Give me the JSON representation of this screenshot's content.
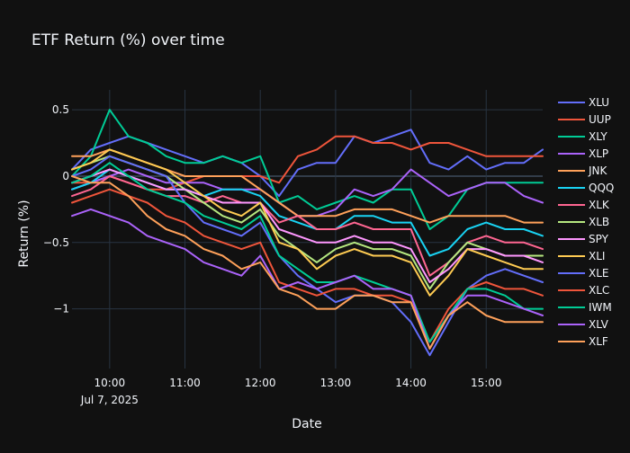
{
  "chart_data": {
    "type": "line",
    "title": "ETF Return (%) over time",
    "xlabel": "Date",
    "ylabel": "Return (%)",
    "grid": true,
    "legend_position": "right",
    "xlim": [
      "09:30",
      "15:45"
    ],
    "ylim": [
      -1.45,
      0.65
    ],
    "x_ticks": [
      {
        "t": "10:00",
        "label": "10:00",
        "sublabel": "Jul 7, 2025"
      },
      {
        "t": "11:00",
        "label": "11:00"
      },
      {
        "t": "12:00",
        "label": "12:00"
      },
      {
        "t": "13:00",
        "label": "13:00"
      },
      {
        "t": "14:00",
        "label": "14:00"
      },
      {
        "t": "15:00",
        "label": "15:00"
      }
    ],
    "y_ticks": [
      {
        "value": 0.5,
        "label": "0.5"
      },
      {
        "value": 0,
        "label": "0"
      },
      {
        "value": -0.5,
        "label": "−0.5"
      },
      {
        "value": -1,
        "label": "−1"
      }
    ],
    "x": [
      "09:30",
      "09:45",
      "10:00",
      "10:15",
      "10:30",
      "10:45",
      "11:00",
      "11:15",
      "11:30",
      "11:45",
      "12:00",
      "12:15",
      "12:30",
      "12:45",
      "13:00",
      "13:15",
      "13:30",
      "13:45",
      "14:00",
      "14:15",
      "14:30",
      "14:45",
      "15:00",
      "15:15",
      "15:30",
      "15:45"
    ],
    "series": [
      {
        "name": "XLU",
        "color": "#636efa",
        "values": [
          0.05,
          0.2,
          0.25,
          0.3,
          0.25,
          0.2,
          0.15,
          0.1,
          0.15,
          0.1,
          0.0,
          -0.15,
          0.05,
          0.1,
          0.1,
          0.3,
          0.25,
          0.3,
          0.35,
          0.1,
          0.05,
          0.15,
          0.05,
          0.1,
          0.1,
          0.2
        ]
      },
      {
        "name": "UUP",
        "color": "#ef553b",
        "values": [
          -0.05,
          -0.05,
          0.0,
          -0.05,
          -0.1,
          -0.1,
          -0.05,
          0.0,
          0.0,
          0.0,
          0.0,
          -0.05,
          0.15,
          0.2,
          0.3,
          0.3,
          0.25,
          0.25,
          0.2,
          0.25,
          0.25,
          0.2,
          0.15,
          0.15,
          0.15,
          0.15
        ]
      },
      {
        "name": "XLY",
        "color": "#00cc96",
        "values": [
          0.0,
          0.15,
          0.5,
          0.3,
          0.25,
          0.15,
          0.1,
          0.1,
          0.15,
          0.1,
          0.15,
          -0.2,
          -0.15,
          -0.25,
          -0.2,
          -0.15,
          -0.2,
          -0.1,
          -0.1,
          -0.4,
          -0.3,
          -0.1,
          -0.05,
          -0.05,
          -0.05,
          -0.05
        ]
      },
      {
        "name": "XLP",
        "color": "#ab63fa",
        "values": [
          -0.1,
          -0.05,
          0.0,
          0.05,
          0.0,
          -0.05,
          -0.05,
          -0.05,
          -0.1,
          -0.1,
          -0.1,
          -0.2,
          -0.3,
          -0.3,
          -0.25,
          -0.1,
          -0.15,
          -0.1,
          0.05,
          -0.05,
          -0.15,
          -0.1,
          -0.05,
          -0.05,
          -0.15,
          -0.2
        ]
      },
      {
        "name": "JNK",
        "color": "#ffa15a",
        "values": [
          0.15,
          0.15,
          0.2,
          0.15,
          0.1,
          0.05,
          0.0,
          0.0,
          0.0,
          0.0,
          -0.1,
          -0.2,
          -0.3,
          -0.3,
          -0.3,
          -0.25,
          -0.25,
          -0.25,
          -0.3,
          -0.35,
          -0.3,
          -0.3,
          -0.3,
          -0.3,
          -0.35,
          -0.35
        ]
      },
      {
        "name": "QQQ",
        "color": "#19d3f3",
        "values": [
          -0.1,
          -0.05,
          0.05,
          0.0,
          -0.05,
          -0.1,
          -0.1,
          -0.15,
          -0.1,
          -0.1,
          -0.15,
          -0.3,
          -0.35,
          -0.4,
          -0.4,
          -0.3,
          -0.3,
          -0.35,
          -0.35,
          -0.6,
          -0.55,
          -0.4,
          -0.35,
          -0.4,
          -0.4,
          -0.45
        ]
      },
      {
        "name": "XLK",
        "color": "#ff6692",
        "values": [
          -0.15,
          -0.1,
          0.0,
          -0.05,
          -0.1,
          -0.15,
          -0.15,
          -0.2,
          -0.15,
          -0.2,
          -0.2,
          -0.35,
          -0.3,
          -0.4,
          -0.4,
          -0.35,
          -0.4,
          -0.4,
          -0.4,
          -0.75,
          -0.65,
          -0.5,
          -0.45,
          -0.5,
          -0.5,
          -0.55
        ]
      },
      {
        "name": "XLB",
        "color": "#b6e880",
        "values": [
          0.05,
          0.1,
          0.15,
          0.1,
          0.05,
          0.0,
          -0.1,
          -0.2,
          -0.3,
          -0.35,
          -0.25,
          -0.45,
          -0.55,
          -0.65,
          -0.55,
          -0.5,
          -0.55,
          -0.55,
          -0.6,
          -0.85,
          -0.65,
          -0.5,
          -0.55,
          -0.6,
          -0.6,
          -0.6
        ]
      },
      {
        "name": "SPY",
        "color": "#ff97ff",
        "values": [
          -0.05,
          0.0,
          0.05,
          0.0,
          -0.05,
          -0.1,
          -0.1,
          -0.15,
          -0.2,
          -0.2,
          -0.2,
          -0.4,
          -0.45,
          -0.5,
          -0.5,
          -0.45,
          -0.5,
          -0.5,
          -0.55,
          -0.8,
          -0.7,
          -0.55,
          -0.55,
          -0.6,
          -0.6,
          -0.65
        ]
      },
      {
        "name": "XLI",
        "color": "#fecb52",
        "values": [
          0.05,
          0.1,
          0.2,
          0.15,
          0.1,
          0.05,
          -0.05,
          -0.15,
          -0.25,
          -0.3,
          -0.2,
          -0.5,
          -0.55,
          -0.7,
          -0.6,
          -0.55,
          -0.6,
          -0.6,
          -0.65,
          -0.9,
          -0.75,
          -0.55,
          -0.6,
          -0.65,
          -0.7,
          -0.7
        ]
      },
      {
        "name": "XLE",
        "color": "#636efa",
        "values": [
          0.0,
          0.05,
          0.15,
          0.1,
          0.05,
          0.0,
          -0.2,
          -0.35,
          -0.4,
          -0.45,
          -0.35,
          -0.6,
          -0.75,
          -0.85,
          -0.95,
          -0.9,
          -0.9,
          -0.95,
          -1.1,
          -1.35,
          -1.1,
          -0.85,
          -0.75,
          -0.7,
          -0.75,
          -0.8
        ]
      },
      {
        "name": "XLC",
        "color": "#ef553b",
        "values": [
          -0.2,
          -0.15,
          -0.1,
          -0.15,
          -0.2,
          -0.3,
          -0.35,
          -0.45,
          -0.5,
          -0.55,
          -0.5,
          -0.8,
          -0.85,
          -0.9,
          -0.85,
          -0.85,
          -0.9,
          -0.9,
          -0.95,
          -1.25,
          -1.0,
          -0.85,
          -0.8,
          -0.85,
          -0.85,
          -0.9
        ]
      },
      {
        "name": "IWM",
        "color": "#00cc96",
        "values": [
          -0.05,
          0.0,
          0.1,
          0.0,
          -0.1,
          -0.15,
          -0.2,
          -0.3,
          -0.35,
          -0.4,
          -0.3,
          -0.6,
          -0.7,
          -0.8,
          -0.8,
          -0.75,
          -0.8,
          -0.85,
          -0.9,
          -1.25,
          -1.05,
          -0.85,
          -0.85,
          -0.9,
          -1.0,
          -1.0
        ]
      },
      {
        "name": "XLV",
        "color": "#ab63fa",
        "values": [
          -0.3,
          -0.25,
          -0.3,
          -0.35,
          -0.45,
          -0.5,
          -0.55,
          -0.65,
          -0.7,
          -0.75,
          -0.6,
          -0.85,
          -0.8,
          -0.85,
          -0.8,
          -0.75,
          -0.85,
          -0.85,
          -0.9,
          -1.3,
          -1.05,
          -0.9,
          -0.9,
          -0.95,
          -1.0,
          -1.05
        ]
      },
      {
        "name": "XLF",
        "color": "#ffa15a",
        "values": [
          0.0,
          -0.05,
          -0.05,
          -0.15,
          -0.3,
          -0.4,
          -0.45,
          -0.55,
          -0.6,
          -0.7,
          -0.65,
          -0.85,
          -0.9,
          -1.0,
          -1.0,
          -0.9,
          -0.9,
          -0.95,
          -0.95,
          -1.3,
          -1.05,
          -0.95,
          -1.05,
          -1.1,
          -1.1,
          -1.1
        ]
      }
    ]
  }
}
